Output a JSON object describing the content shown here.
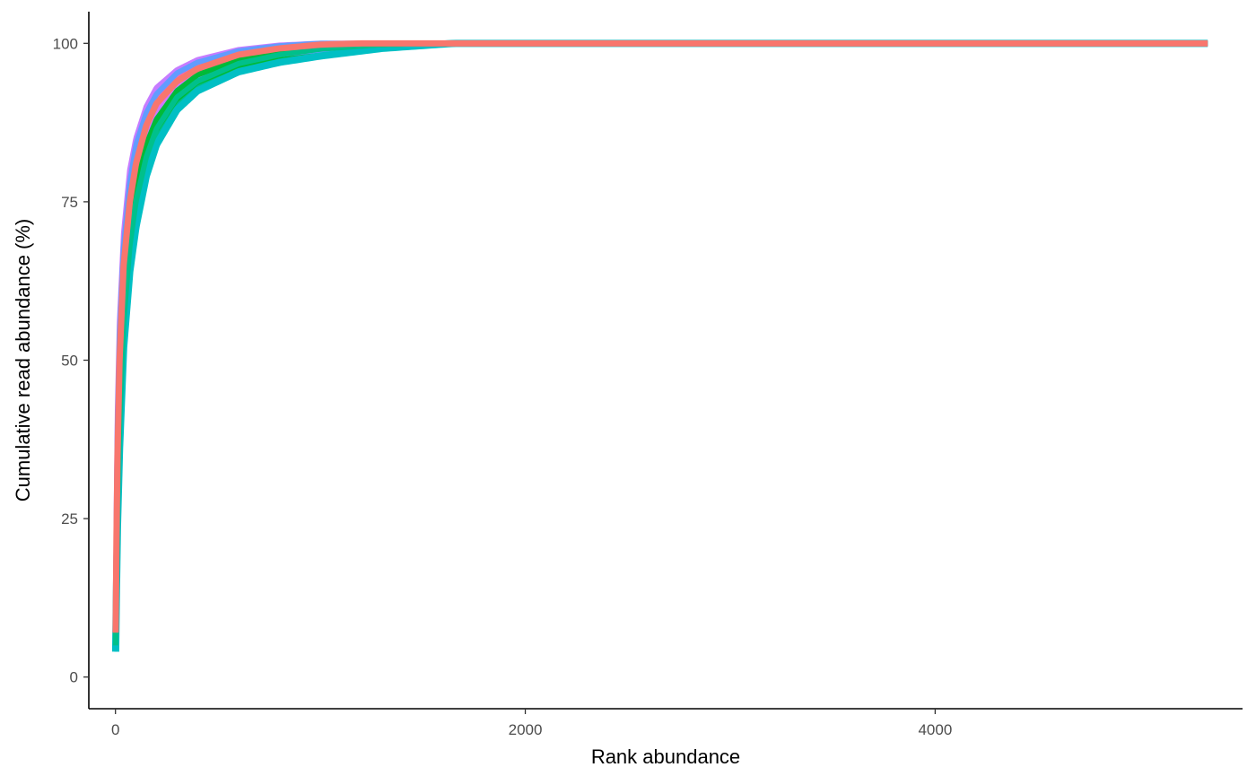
{
  "chart_data": {
    "type": "line",
    "title": "",
    "xlabel": "Rank abundance",
    "ylabel": "Cumulative read abundance (%)",
    "xlim": [
      -130,
      5500
    ],
    "ylim": [
      -5,
      105
    ],
    "x_ticks": [
      {
        "value": 0,
        "label": "0"
      },
      {
        "value": 2000,
        "label": "2000"
      },
      {
        "value": 4000,
        "label": "4000"
      }
    ],
    "y_ticks": [
      {
        "value": 0,
        "label": "0"
      },
      {
        "value": 25,
        "label": "25"
      },
      {
        "value": 50,
        "label": "50"
      },
      {
        "value": 75,
        "label": "75"
      },
      {
        "value": 100,
        "label": "100"
      }
    ],
    "grid": false,
    "legend": "none",
    "series": [
      {
        "color": "#00BFC4",
        "x": [
          1,
          5,
          10,
          20,
          40,
          70,
          100,
          150,
          200,
          300,
          400,
          600,
          800,
          1000,
          1300,
          1650,
          5330
        ],
        "y": [
          4,
          14,
          24,
          36,
          52,
          64,
          71,
          79,
          84,
          89.5,
          92.5,
          95.5,
          97,
          98,
          99.2,
          100,
          100
        ]
      },
      {
        "color": "#00BA38",
        "x": [
          1,
          5,
          10,
          20,
          40,
          70,
          100,
          150,
          200,
          300,
          400,
          600,
          800,
          1000,
          1300,
          1550,
          5330
        ],
        "y": [
          6,
          18,
          30,
          44,
          60,
          71,
          77,
          84,
          88,
          92.5,
          95,
          97.5,
          98.6,
          99.3,
          99.8,
          100,
          100
        ]
      },
      {
        "color": "#C77CFF",
        "x": [
          1,
          5,
          10,
          20,
          40,
          70,
          100,
          150,
          200,
          300,
          400,
          600,
          800,
          1000,
          5330
        ],
        "y": [
          9,
          28,
          42,
          56,
          70,
          80,
          85,
          90,
          93,
          95.8,
          97.4,
          99,
          99.7,
          100,
          100
        ]
      },
      {
        "color": "#619CFF",
        "x": [
          1,
          5,
          10,
          20,
          40,
          70,
          100,
          150,
          200,
          300,
          400,
          600,
          800,
          1000,
          5330
        ],
        "y": [
          8,
          26,
          40,
          54,
          68,
          78,
          84,
          89,
          92,
          95.3,
          97,
          98.8,
          99.6,
          100,
          100
        ]
      },
      {
        "color": "#00C08B",
        "x": [
          1,
          5,
          10,
          20,
          40,
          70,
          100,
          150,
          200,
          300,
          400,
          600,
          800,
          1000,
          1300,
          1500,
          5330
        ],
        "y": [
          5,
          16,
          27,
          40,
          56,
          68,
          75,
          82,
          86.5,
          91.5,
          94,
          96.8,
          98.2,
          99.1,
          99.8,
          100,
          100
        ]
      },
      {
        "color": "#F8766D",
        "x": [
          1,
          5,
          10,
          20,
          40,
          70,
          100,
          150,
          200,
          300,
          400,
          600,
          800,
          1000,
          1200,
          5330
        ],
        "y": [
          7,
          22,
          35,
          50,
          65,
          75,
          81,
          87,
          90.5,
          94,
          96,
          98.2,
          99.2,
          99.8,
          100,
          100
        ]
      }
    ]
  }
}
